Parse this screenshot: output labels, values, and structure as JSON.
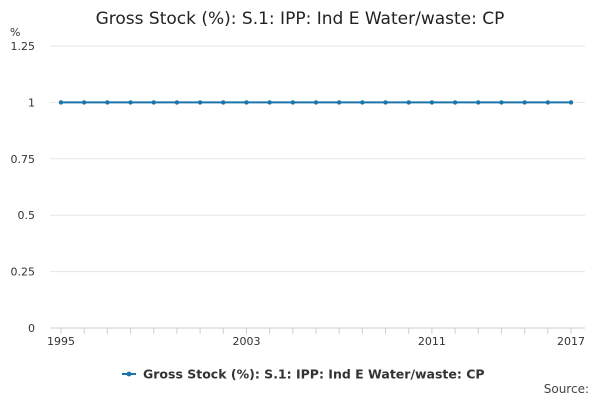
{
  "chart_data": {
    "type": "line",
    "title": "Gross Stock (%): S.1: IPP: Ind E Water/waste: CP",
    "ylabel": "%",
    "xlabel": "",
    "ylim": [
      0,
      1.25
    ],
    "yticks": [
      0,
      0.25,
      0.5,
      0.75,
      1,
      1.25
    ],
    "ytick_labels": [
      "0",
      "0.25",
      "0.5",
      "0.75",
      "1",
      "1.25"
    ],
    "xlim": [
      1995,
      2017
    ],
    "xtick_labels": [
      "1995",
      "2003",
      "2011",
      "2017"
    ],
    "x": [
      1995,
      1996,
      1997,
      1998,
      1999,
      2000,
      2001,
      2002,
      2003,
      2004,
      2005,
      2006,
      2007,
      2008,
      2009,
      2010,
      2011,
      2012,
      2013,
      2014,
      2015,
      2016,
      2017
    ],
    "series": [
      {
        "name": "Gross Stock (%): S.1: IPP: Ind E Water/waste: CP",
        "values": [
          1,
          1,
          1,
          1,
          1,
          1,
          1,
          1,
          1,
          1,
          1,
          1,
          1,
          1,
          1,
          1,
          1,
          1,
          1,
          1,
          1,
          1,
          1
        ],
        "color": "#1b75a9"
      }
    ],
    "grid": true,
    "legend_position": "bottom",
    "source_label": "Source:"
  }
}
